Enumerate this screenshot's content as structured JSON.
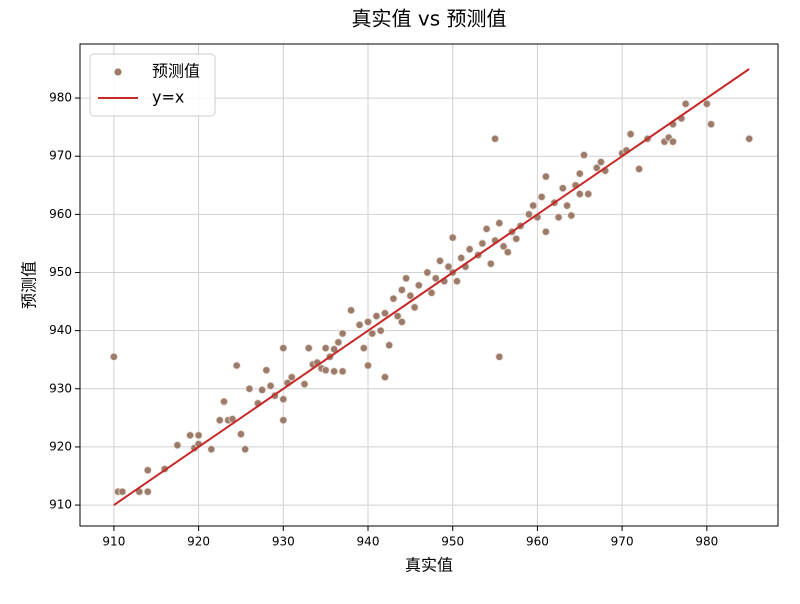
{
  "chart_data": {
    "type": "scatter",
    "title": "真实值 vs 预测值",
    "x_label": "真实值",
    "y_label": "预测值",
    "xlim": [
      906,
      988.4
    ],
    "ylim": [
      906.4,
      989.3
    ],
    "xticks": [
      910,
      920,
      930,
      940,
      950,
      960,
      970,
      980
    ],
    "yticks": [
      910,
      920,
      930,
      940,
      950,
      960,
      970,
      980
    ],
    "grid": true,
    "legend": "upper-left",
    "series": [
      {
        "name": "预测值",
        "kind": "scatter",
        "color": "#9c7b6b",
        "x": [
          910,
          910.5,
          911,
          913,
          914,
          914,
          916,
          917.5,
          919,
          919.5,
          920,
          920,
          921.5,
          922.5,
          923,
          923.5,
          924,
          924.5,
          925,
          925.5,
          926,
          927,
          927.5,
          928,
          928.5,
          929,
          930,
          930,
          930,
          930.5,
          931,
          932.5,
          933,
          933.5,
          934,
          934.5,
          935,
          935,
          935.5,
          936,
          936,
          936.5,
          937,
          937,
          938,
          939,
          939.5,
          940,
          940,
          940.5,
          941,
          941.5,
          942,
          942,
          942.5,
          943,
          943.5,
          944,
          944,
          944.5,
          945,
          945.5,
          946,
          947,
          947.5,
          948,
          948.5,
          949,
          949.5,
          950,
          950,
          950.5,
          951,
          951.5,
          952,
          953,
          953.5,
          954,
          954.5,
          955,
          955,
          955.5,
          955.5,
          956,
          956.5,
          957,
          957.5,
          958,
          959,
          959.5,
          960,
          960.5,
          961,
          961,
          962,
          962.5,
          963,
          963.5,
          964,
          964.5,
          965,
          965,
          965.5,
          966,
          967,
          967.5,
          968,
          970,
          970.5,
          971,
          972,
          973,
          975,
          975.5,
          976,
          976,
          977,
          977.5,
          980,
          980.5,
          985
        ],
        "values": [
          935.5,
          912.3,
          912.3,
          912.3,
          916,
          912.3,
          916.2,
          920.3,
          922,
          919.8,
          922,
          920.5,
          919.6,
          924.6,
          927.8,
          924.6,
          924.8,
          934,
          922.2,
          919.6,
          930,
          927.5,
          929.8,
          933.2,
          930.5,
          928.8,
          928.2,
          924.6,
          937,
          931,
          932,
          930.8,
          937,
          934.2,
          934.5,
          933.5,
          937,
          933.2,
          935.5,
          936.8,
          933,
          938,
          939.5,
          933,
          943.5,
          941,
          937,
          941.5,
          934,
          939.5,
          942.5,
          940,
          943,
          932,
          937.5,
          945.5,
          942.5,
          947,
          941.5,
          949,
          946,
          944,
          947.8,
          950,
          946.5,
          949,
          952,
          948.5,
          951,
          956,
          950,
          948.5,
          952.5,
          951,
          954,
          953,
          955,
          957.5,
          951.5,
          973,
          955.5,
          935.5,
          958.5,
          954.5,
          953.5,
          957,
          955.8,
          958,
          960,
          961.5,
          959.5,
          963,
          957,
          966.5,
          962,
          959.5,
          964.5,
          961.5,
          959.8,
          965,
          967,
          963.5,
          970.2,
          963.5,
          968,
          969,
          967.5,
          970.5,
          971,
          973.8,
          967.8,
          973,
          972.5,
          973.2,
          975.5,
          972.5,
          976.5,
          979,
          979,
          975.5,
          973
        ]
      },
      {
        "name": "y=x",
        "kind": "line",
        "color": "#c62828",
        "x": [
          910,
          985
        ],
        "values": [
          910,
          985
        ]
      }
    ]
  }
}
